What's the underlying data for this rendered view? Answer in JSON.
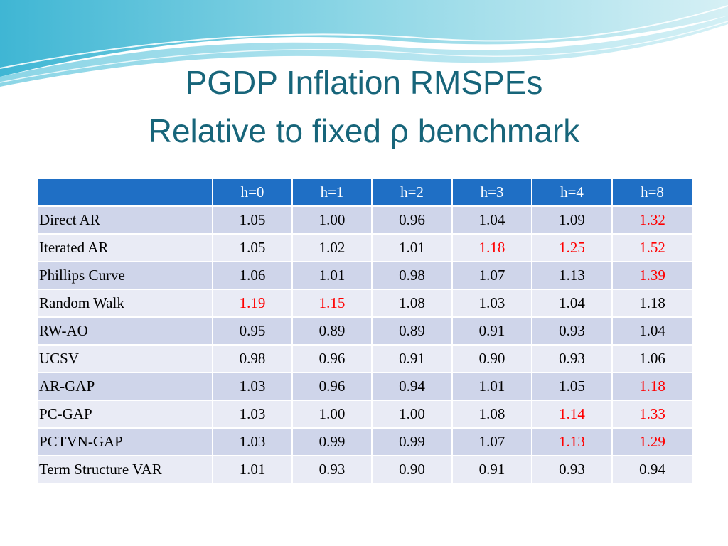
{
  "slide": {
    "title_line1": "PGDP Inflation RMSPEs",
    "title_line2": "Relative to fixed ρ benchmark"
  },
  "colors": {
    "title": "#17657a",
    "header_bg": "#1f6fc5",
    "row_odd": "#cfd5ea",
    "row_even": "#e9ebf5",
    "highlight": "#ff0000"
  },
  "table": {
    "columns": [
      "",
      "h=0",
      "h=1",
      "h=2",
      "h=3",
      "h=4",
      "h=8"
    ],
    "rows": [
      {
        "label": "Direct AR",
        "values": [
          "1.05",
          "1.00",
          "0.96",
          "1.04",
          "1.09",
          "1.32"
        ],
        "red": [
          false,
          false,
          false,
          false,
          false,
          true
        ]
      },
      {
        "label": "Iterated AR",
        "values": [
          "1.05",
          "1.02",
          "1.01",
          "1.18",
          "1.25",
          "1.52"
        ],
        "red": [
          false,
          false,
          false,
          true,
          true,
          true
        ]
      },
      {
        "label": "Phillips Curve",
        "values": [
          "1.06",
          "1.01",
          "0.98",
          "1.07",
          "1.13",
          "1.39"
        ],
        "red": [
          false,
          false,
          false,
          false,
          false,
          true
        ]
      },
      {
        "label": "Random Walk",
        "values": [
          "1.19",
          "1.15",
          "1.08",
          "1.03",
          "1.04",
          "1.18"
        ],
        "red": [
          true,
          true,
          false,
          false,
          false,
          false
        ]
      },
      {
        "label": "RW-AO",
        "values": [
          "0.95",
          "0.89",
          "0.89",
          "0.91",
          "0.93",
          "1.04"
        ],
        "red": [
          false,
          false,
          false,
          false,
          false,
          false
        ]
      },
      {
        "label": "UCSV",
        "values": [
          "0.98",
          "0.96",
          "0.91",
          "0.90",
          "0.93",
          "1.06"
        ],
        "red": [
          false,
          false,
          false,
          false,
          false,
          false
        ]
      },
      {
        "label": "AR-GAP",
        "values": [
          "1.03",
          "0.96",
          "0.94",
          "1.01",
          "1.05",
          "1.18"
        ],
        "red": [
          false,
          false,
          false,
          false,
          false,
          true
        ]
      },
      {
        "label": "PC-GAP",
        "values": [
          "1.03",
          "1.00",
          "1.00",
          "1.08",
          "1.14",
          "1.33"
        ],
        "red": [
          false,
          false,
          false,
          false,
          true,
          true
        ]
      },
      {
        "label": "PCTVN-GAP",
        "values": [
          "1.03",
          "0.99",
          "0.99",
          "1.07",
          "1.13",
          "1.29"
        ],
        "red": [
          false,
          false,
          false,
          false,
          true,
          true
        ]
      },
      {
        "label": "Term Structure VAR",
        "values": [
          "1.01",
          "0.93",
          "0.90",
          "0.91",
          "0.93",
          "0.94"
        ],
        "red": [
          false,
          false,
          false,
          false,
          false,
          false
        ]
      }
    ]
  }
}
